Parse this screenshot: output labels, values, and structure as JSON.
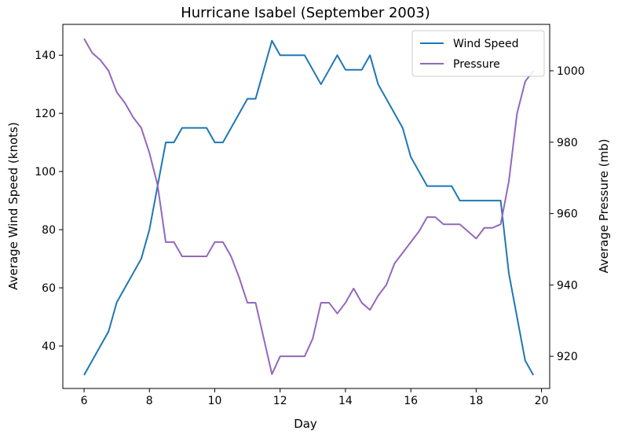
{
  "chart_data": {
    "type": "line",
    "title": "Hurricane Isabel (September 2003)",
    "xlabel": "Day",
    "ylabel_left": "Average Wind Speed (knots)",
    "ylabel_right": "Average Pressure (mb)",
    "xlim": [
      5.35,
      20.25
    ],
    "xticks": [
      6,
      8,
      10,
      12,
      14,
      16,
      18,
      20
    ],
    "ylim_left": [
      25.4,
      150.6
    ],
    "yticks_left": [
      40,
      60,
      80,
      100,
      120,
      140
    ],
    "ylim_right": [
      911,
      1013
    ],
    "yticks_right": [
      920,
      940,
      960,
      980,
      1000
    ],
    "legend_position": "upper right",
    "grid": false,
    "x": [
      6.0,
      6.25,
      6.5,
      6.75,
      7.0,
      7.25,
      7.5,
      7.75,
      8.0,
      8.25,
      8.5,
      8.75,
      9.0,
      9.25,
      9.5,
      9.75,
      10.0,
      10.25,
      10.5,
      10.75,
      11.0,
      11.25,
      11.5,
      11.75,
      12.0,
      12.25,
      12.5,
      12.75,
      13.0,
      13.25,
      13.5,
      13.75,
      14.0,
      14.25,
      14.5,
      14.75,
      15.0,
      15.25,
      15.5,
      15.75,
      16.0,
      16.25,
      16.5,
      16.75,
      17.0,
      17.25,
      17.5,
      17.75,
      18.0,
      18.25,
      18.5,
      18.75,
      19.0,
      19.25,
      19.5,
      19.75
    ],
    "series": [
      {
        "name": "Wind Speed",
        "axis": "left",
        "color": "#1f77b4",
        "values": [
          30,
          35,
          40,
          45,
          55,
          60,
          65,
          70,
          80,
          95,
          110,
          110,
          115,
          115,
          115,
          115,
          110,
          110,
          115,
          120,
          125,
          125,
          135,
          145,
          140,
          140,
          140,
          140,
          135,
          130,
          135,
          140,
          135,
          135,
          135,
          140,
          130,
          125,
          120,
          115,
          105,
          100,
          95,
          95,
          95,
          95,
          90,
          90,
          90,
          90,
          90,
          90,
          65,
          50,
          35,
          30
        ]
      },
      {
        "name": "Pressure",
        "axis": "right",
        "color": "#9467bd",
        "values": [
          1009,
          1005,
          1003,
          1000,
          994,
          991,
          987,
          984,
          977,
          968,
          952,
          952,
          948,
          948,
          948,
          948,
          952,
          952,
          948,
          942,
          935,
          935,
          925,
          915,
          920,
          920,
          920,
          920,
          925,
          935,
          935,
          932,
          935,
          939,
          935,
          933,
          937,
          940,
          946,
          949,
          952,
          955,
          959,
          959,
          957,
          957,
          957,
          955,
          953,
          956,
          956,
          957,
          969,
          988,
          997,
          1000
        ]
      }
    ]
  }
}
